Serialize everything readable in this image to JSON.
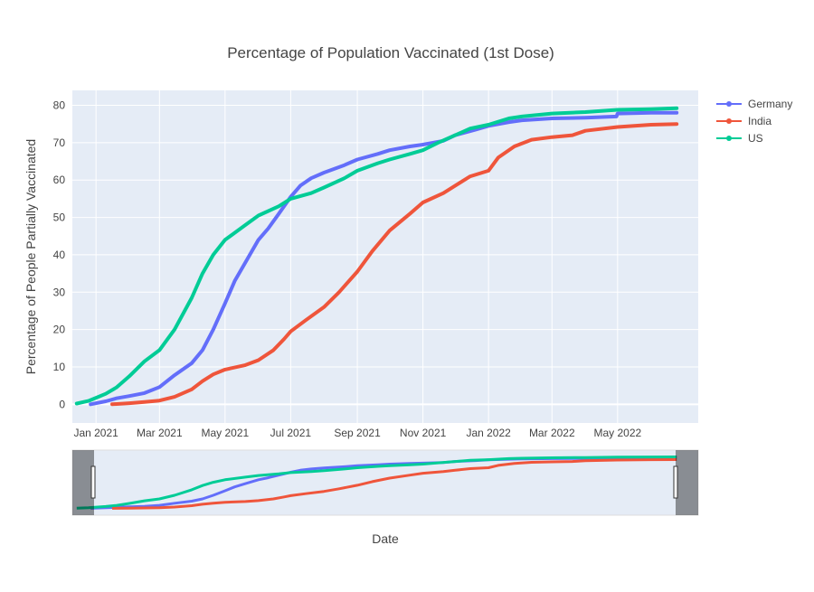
{
  "chart_data": {
    "type": "line",
    "title": "Percentage of Population Vaccinated (1st Dose)",
    "xlabel": "Date",
    "ylabel": "Percentage of People Partially Vaccinated",
    "x_range": [
      "2020-12-10",
      "2022-07-15"
    ],
    "ylim": [
      -5,
      84
    ],
    "x_ticks": [
      {
        "date": "2021-01-01",
        "label": "Jan 2021"
      },
      {
        "date": "2021-03-01",
        "label": "Mar 2021"
      },
      {
        "date": "2021-05-01",
        "label": "May 2021"
      },
      {
        "date": "2021-07-01",
        "label": "Jul 2021"
      },
      {
        "date": "2021-09-01",
        "label": "Sep 2021"
      },
      {
        "date": "2021-11-01",
        "label": "Nov 2021"
      },
      {
        "date": "2022-01-01",
        "label": "Jan 2022"
      },
      {
        "date": "2022-03-01",
        "label": "Mar 2022"
      },
      {
        "date": "2022-05-01",
        "label": "May 2022"
      }
    ],
    "y_ticks": [
      0,
      10,
      20,
      30,
      40,
      50,
      60,
      70,
      80
    ],
    "grid": true,
    "legend_position": "top-right",
    "range_slider": true,
    "series": [
      {
        "name": "Germany",
        "color": "#636efa",
        "points": [
          [
            "2020-12-27",
            0
          ],
          [
            "2021-01-10",
            0.8
          ],
          [
            "2021-01-20",
            1.6
          ],
          [
            "2021-02-01",
            2.2
          ],
          [
            "2021-02-15",
            3.0
          ],
          [
            "2021-03-01",
            4.6
          ],
          [
            "2021-03-15",
            7.8
          ],
          [
            "2021-03-31",
            11.0
          ],
          [
            "2021-04-10",
            14.5
          ],
          [
            "2021-04-20",
            20.0
          ],
          [
            "2021-05-01",
            27.0
          ],
          [
            "2021-05-10",
            33.0
          ],
          [
            "2021-05-20",
            38.0
          ],
          [
            "2021-06-01",
            44.0
          ],
          [
            "2021-06-10",
            47.0
          ],
          [
            "2021-06-20",
            51.0
          ],
          [
            "2021-07-01",
            55.5
          ],
          [
            "2021-07-10",
            58.5
          ],
          [
            "2021-07-20",
            60.5
          ],
          [
            "2021-08-01",
            62.0
          ],
          [
            "2021-08-20",
            64.0
          ],
          [
            "2021-09-01",
            65.5
          ],
          [
            "2021-09-20",
            67.0
          ],
          [
            "2021-10-01",
            68.0
          ],
          [
            "2021-10-20",
            69.0
          ],
          [
            "2021-11-01",
            69.5
          ],
          [
            "2021-11-20",
            70.5
          ],
          [
            "2021-12-01",
            72.0
          ],
          [
            "2021-12-20",
            73.5
          ],
          [
            "2022-01-01",
            74.5
          ],
          [
            "2022-01-20",
            75.5
          ],
          [
            "2022-02-01",
            76.0
          ],
          [
            "2022-03-01",
            76.5
          ],
          [
            "2022-04-01",
            76.7
          ],
          [
            "2022-04-30",
            77.0
          ],
          [
            "2022-05-01",
            77.8
          ],
          [
            "2022-06-01",
            78.0
          ],
          [
            "2022-06-25",
            78.0
          ]
        ]
      },
      {
        "name": "India",
        "color": "#ef553b",
        "points": [
          [
            "2021-01-16",
            0
          ],
          [
            "2021-02-01",
            0.3
          ],
          [
            "2021-02-15",
            0.6
          ],
          [
            "2021-03-01",
            1.0
          ],
          [
            "2021-03-15",
            2.0
          ],
          [
            "2021-03-31",
            4.0
          ],
          [
            "2021-04-10",
            6.2
          ],
          [
            "2021-04-20",
            8.0
          ],
          [
            "2021-05-01",
            9.3
          ],
          [
            "2021-05-20",
            10.5
          ],
          [
            "2021-06-01",
            11.8
          ],
          [
            "2021-06-15",
            14.5
          ],
          [
            "2021-06-25",
            17.5
          ],
          [
            "2021-07-01",
            19.5
          ],
          [
            "2021-07-15",
            22.5
          ],
          [
            "2021-08-01",
            26.0
          ],
          [
            "2021-08-15",
            30.0
          ],
          [
            "2021-09-01",
            35.5
          ],
          [
            "2021-09-15",
            41.0
          ],
          [
            "2021-10-01",
            46.5
          ],
          [
            "2021-10-20",
            51.0
          ],
          [
            "2021-11-01",
            54.0
          ],
          [
            "2021-11-20",
            56.5
          ],
          [
            "2021-12-01",
            58.5
          ],
          [
            "2021-12-15",
            61.0
          ],
          [
            "2022-01-01",
            62.5
          ],
          [
            "2022-01-10",
            66.0
          ],
          [
            "2022-01-25",
            69.0
          ],
          [
            "2022-02-10",
            70.8
          ],
          [
            "2022-03-01",
            71.5
          ],
          [
            "2022-03-20",
            72.0
          ],
          [
            "2022-04-01",
            73.2
          ],
          [
            "2022-05-01",
            74.2
          ],
          [
            "2022-06-01",
            74.8
          ],
          [
            "2022-06-25",
            75.0
          ]
        ]
      },
      {
        "name": "US",
        "color": "#00cc96",
        "points": [
          [
            "2020-12-14",
            0.2
          ],
          [
            "2020-12-25",
            0.9
          ],
          [
            "2021-01-10",
            2.8
          ],
          [
            "2021-01-20",
            4.5
          ],
          [
            "2021-02-01",
            7.5
          ],
          [
            "2021-02-15",
            11.5
          ],
          [
            "2021-03-01",
            14.5
          ],
          [
            "2021-03-15",
            20.0
          ],
          [
            "2021-03-31",
            28.5
          ],
          [
            "2021-04-10",
            35.0
          ],
          [
            "2021-04-20",
            40.0
          ],
          [
            "2021-05-01",
            44.0
          ],
          [
            "2021-05-20",
            48.0
          ],
          [
            "2021-06-01",
            50.5
          ],
          [
            "2021-06-20",
            53.0
          ],
          [
            "2021-07-01",
            55.0
          ],
          [
            "2021-07-20",
            56.5
          ],
          [
            "2021-08-01",
            58.0
          ],
          [
            "2021-08-20",
            60.5
          ],
          [
            "2021-09-01",
            62.5
          ],
          [
            "2021-09-20",
            64.5
          ],
          [
            "2021-10-01",
            65.5
          ],
          [
            "2021-10-20",
            67.0
          ],
          [
            "2021-11-01",
            68.0
          ],
          [
            "2021-11-15",
            70.0
          ],
          [
            "2021-12-01",
            72.0
          ],
          [
            "2021-12-15",
            73.8
          ],
          [
            "2022-01-01",
            74.8
          ],
          [
            "2022-01-20",
            76.5
          ],
          [
            "2022-02-01",
            77.0
          ],
          [
            "2022-03-01",
            77.8
          ],
          [
            "2022-04-01",
            78.2
          ],
          [
            "2022-05-01",
            78.8
          ],
          [
            "2022-06-01",
            79.0
          ],
          [
            "2022-06-25",
            79.2
          ]
        ]
      }
    ]
  }
}
